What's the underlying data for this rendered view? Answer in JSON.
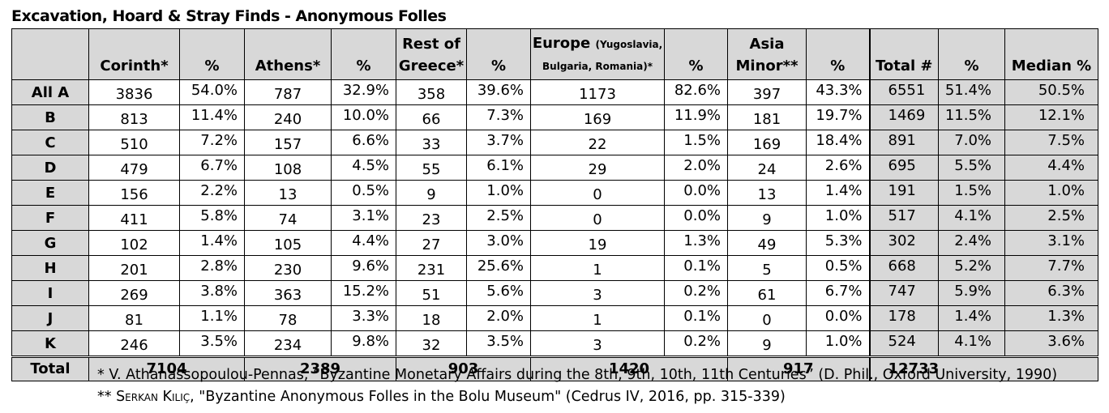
{
  "title": "Excavation, Hoard & Stray Finds - Anonymous Folles",
  "headers": {
    "corinth": "Corinth*",
    "pct1": "%",
    "athens": "Athens*",
    "pct2": "%",
    "rest_line1": "Rest of",
    "rest_line2": "Greece*",
    "pct3": "%",
    "europe_line1_main": "Europe",
    "europe_line1_small": "(Yugoslavia,",
    "europe_line2": "Bulgaria, Romania)*",
    "pct4": "%",
    "asia_line1": "Asia",
    "asia_line2": "Minor**",
    "pct5": "%",
    "total_num": "Total #",
    "pct_total": "%",
    "median": "Median %"
  },
  "rows": [
    {
      "label": "All A",
      "corinth": "3836",
      "corinth_pct": "54.0%",
      "athens": "787",
      "athens_pct": "32.9%",
      "rest": "358",
      "rest_pct": "39.6%",
      "europe": "1173",
      "europe_pct": "82.6%",
      "asia": "397",
      "asia_pct": "43.3%",
      "total": "6551",
      "total_pct": "51.4%",
      "median": "50.5%"
    },
    {
      "label": "B",
      "corinth": "813",
      "corinth_pct": "11.4%",
      "athens": "240",
      "athens_pct": "10.0%",
      "rest": "66",
      "rest_pct": "7.3%",
      "europe": "169",
      "europe_pct": "11.9%",
      "asia": "181",
      "asia_pct": "19.7%",
      "total": "1469",
      "total_pct": "11.5%",
      "median": "12.1%"
    },
    {
      "label": "C",
      "corinth": "510",
      "corinth_pct": "7.2%",
      "athens": "157",
      "athens_pct": "6.6%",
      "rest": "33",
      "rest_pct": "3.7%",
      "europe": "22",
      "europe_pct": "1.5%",
      "asia": "169",
      "asia_pct": "18.4%",
      "total": "891",
      "total_pct": "7.0%",
      "median": "7.5%"
    },
    {
      "label": "D",
      "corinth": "479",
      "corinth_pct": "6.7%",
      "athens": "108",
      "athens_pct": "4.5%",
      "rest": "55",
      "rest_pct": "6.1%",
      "europe": "29",
      "europe_pct": "2.0%",
      "asia": "24",
      "asia_pct": "2.6%",
      "total": "695",
      "total_pct": "5.5%",
      "median": "4.4%"
    },
    {
      "label": "E",
      "corinth": "156",
      "corinth_pct": "2.2%",
      "athens": "13",
      "athens_pct": "0.5%",
      "rest": "9",
      "rest_pct": "1.0%",
      "europe": "0",
      "europe_pct": "0.0%",
      "asia": "13",
      "asia_pct": "1.4%",
      "total": "191",
      "total_pct": "1.5%",
      "median": "1.0%"
    },
    {
      "label": "F",
      "corinth": "411",
      "corinth_pct": "5.8%",
      "athens": "74",
      "athens_pct": "3.1%",
      "rest": "23",
      "rest_pct": "2.5%",
      "europe": "0",
      "europe_pct": "0.0%",
      "asia": "9",
      "asia_pct": "1.0%",
      "total": "517",
      "total_pct": "4.1%",
      "median": "2.5%"
    },
    {
      "label": "G",
      "corinth": "102",
      "corinth_pct": "1.4%",
      "athens": "105",
      "athens_pct": "4.4%",
      "rest": "27",
      "rest_pct": "3.0%",
      "europe": "19",
      "europe_pct": "1.3%",
      "asia": "49",
      "asia_pct": "5.3%",
      "total": "302",
      "total_pct": "2.4%",
      "median": "3.1%"
    },
    {
      "label": "H",
      "corinth": "201",
      "corinth_pct": "2.8%",
      "athens": "230",
      "athens_pct": "9.6%",
      "rest": "231",
      "rest_pct": "25.6%",
      "europe": "1",
      "europe_pct": "0.1%",
      "asia": "5",
      "asia_pct": "0.5%",
      "total": "668",
      "total_pct": "5.2%",
      "median": "7.7%"
    },
    {
      "label": "I",
      "corinth": "269",
      "corinth_pct": "3.8%",
      "athens": "363",
      "athens_pct": "15.2%",
      "rest": "51",
      "rest_pct": "5.6%",
      "europe": "3",
      "europe_pct": "0.2%",
      "asia": "61",
      "asia_pct": "6.7%",
      "total": "747",
      "total_pct": "5.9%",
      "median": "6.3%"
    },
    {
      "label": "J",
      "corinth": "81",
      "corinth_pct": "1.1%",
      "athens": "78",
      "athens_pct": "3.3%",
      "rest": "18",
      "rest_pct": "2.0%",
      "europe": "1",
      "europe_pct": "0.1%",
      "asia": "0",
      "asia_pct": "0.0%",
      "total": "178",
      "total_pct": "1.4%",
      "median": "1.3%"
    },
    {
      "label": "K",
      "corinth": "246",
      "corinth_pct": "3.5%",
      "athens": "234",
      "athens_pct": "9.8%",
      "rest": "32",
      "rest_pct": "3.5%",
      "europe": "3",
      "europe_pct": "0.2%",
      "asia": "9",
      "asia_pct": "1.0%",
      "total": "524",
      "total_pct": "4.1%",
      "median": "3.6%"
    }
  ],
  "totals": {
    "label": "Total",
    "corinth": "7104",
    "athens": "2389",
    "rest": "903",
    "europe": "1420",
    "asia": "917",
    "total": "12733"
  },
  "footnotes": {
    "note1": "* V. Athanassopoulou-Pennas, “Byzantine Monetary Affairs during the 8th, 9th, 10th, 11th Centuries” (D. Phil., Oxford University, 1990)",
    "note2_prefix": "** ",
    "note2_author": "Serkan Kılıç",
    "note2_rest": ", \"Byzantine Anonymous Folles in the Bolu Museum\" (Cedrus IV, 2016, pp. 315-339)"
  }
}
